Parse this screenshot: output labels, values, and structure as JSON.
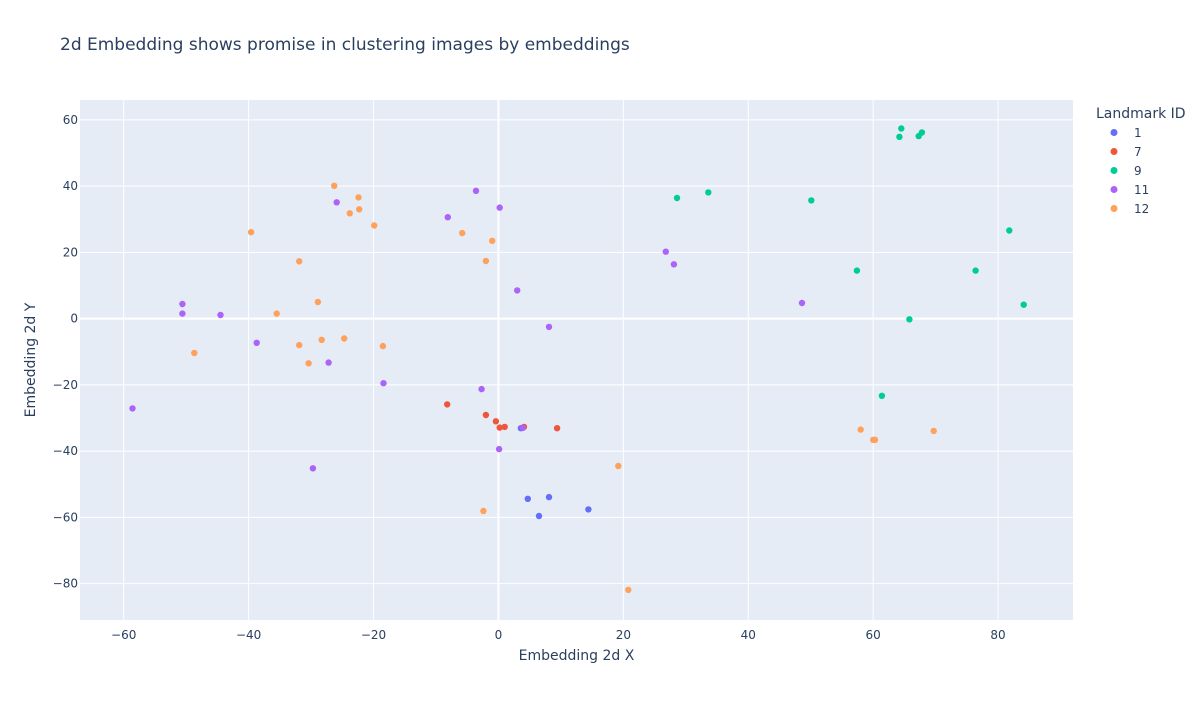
{
  "chart_data": {
    "type": "scatter",
    "title": "2d Embedding shows promise in clustering images by embeddings",
    "xlabel": "Embedding 2d X",
    "ylabel": "Embedding 2d Y",
    "xlim": [
      -67,
      92
    ],
    "ylim": [
      -91,
      66
    ],
    "x_ticks": [
      -60,
      -40,
      -20,
      0,
      20,
      40,
      60,
      80
    ],
    "y_ticks": [
      -80,
      -60,
      -40,
      -20,
      0,
      20,
      40,
      60
    ],
    "x_tick_labels": [
      "−60",
      "−40",
      "−20",
      "0",
      "20",
      "40",
      "60",
      "80"
    ],
    "y_tick_labels": [
      "−80",
      "−60",
      "−40",
      "−20",
      "0",
      "20",
      "40",
      "60"
    ],
    "grid": true,
    "legend_title": "Landmark ID",
    "legend_position": "right",
    "plot_bg": "#E5ECF6",
    "series": [
      {
        "name": "1",
        "color": "#636EFA",
        "points": [
          [
            4.7,
            -54.4
          ],
          [
            8.1,
            -53.9
          ],
          [
            6.5,
            -59.6
          ],
          [
            14.4,
            -57.6
          ],
          [
            3.6,
            -33.1
          ]
        ]
      },
      {
        "name": "7",
        "color": "#EF553B",
        "points": [
          [
            -8.2,
            -25.9
          ],
          [
            -2,
            -29.1
          ],
          [
            -0.4,
            -31
          ],
          [
            0.2,
            -32.9
          ],
          [
            1,
            -32.7
          ],
          [
            4.1,
            -32.7
          ],
          [
            9.4,
            -33.1
          ]
        ]
      },
      {
        "name": "9",
        "color": "#00CC96",
        "points": [
          [
            64.5,
            57.4
          ],
          [
            67.8,
            56.2
          ],
          [
            67.3,
            55.1
          ],
          [
            64.2,
            54.9
          ],
          [
            28.6,
            36.4
          ],
          [
            33.6,
            38.1
          ],
          [
            50.1,
            35.7
          ],
          [
            81.8,
            26.6
          ],
          [
            57.4,
            14.5
          ],
          [
            76.4,
            14.5
          ],
          [
            84.1,
            4.2
          ],
          [
            65.8,
            -0.2
          ],
          [
            61.4,
            -23.3
          ]
        ]
      },
      {
        "name": "11",
        "color": "#AB63FA",
        "points": [
          [
            -3.6,
            38.6
          ],
          [
            -25.9,
            35.1
          ],
          [
            -8.1,
            30.6
          ],
          [
            0.2,
            33.5
          ],
          [
            26.8,
            20.2
          ],
          [
            28.1,
            16.4
          ],
          [
            3,
            8.5
          ],
          [
            48.6,
            4.7
          ],
          [
            8.1,
            -2.5
          ],
          [
            -50.6,
            4.4
          ],
          [
            -50.6,
            1.5
          ],
          [
            -44.5,
            1.1
          ],
          [
            -38.7,
            -7.3
          ],
          [
            -27.2,
            -13.3
          ],
          [
            -18.4,
            -19.5
          ],
          [
            -2.7,
            -21.3
          ],
          [
            3.9,
            -33
          ],
          [
            0.1,
            -39.4
          ],
          [
            -29.7,
            -45.2
          ],
          [
            -58.6,
            -27.1
          ]
        ]
      },
      {
        "name": "12",
        "color": "#FFA15A",
        "points": [
          [
            -26.3,
            40.1
          ],
          [
            -22.4,
            36.6
          ],
          [
            -22.3,
            33
          ],
          [
            -23.8,
            31.8
          ],
          [
            -19.9,
            28.1
          ],
          [
            -39.6,
            26.1
          ],
          [
            -5.8,
            25.8
          ],
          [
            -1,
            23.5
          ],
          [
            -31.9,
            17.3
          ],
          [
            -2,
            17.4
          ],
          [
            -28.9,
            5
          ],
          [
            -35.5,
            1.5
          ],
          [
            -24.7,
            -6
          ],
          [
            -28.3,
            -6.4
          ],
          [
            -31.9,
            -8
          ],
          [
            -18.5,
            -8.3
          ],
          [
            -30.4,
            -13.5
          ],
          [
            -48.7,
            -10.4
          ],
          [
            19.2,
            -44.5
          ],
          [
            -2.4,
            -58.1
          ],
          [
            20.8,
            -81.9
          ],
          [
            58,
            -33.5
          ],
          [
            60,
            -36.6
          ],
          [
            60.3,
            -36.6
          ],
          [
            69.7,
            -33.9
          ]
        ]
      }
    ]
  }
}
